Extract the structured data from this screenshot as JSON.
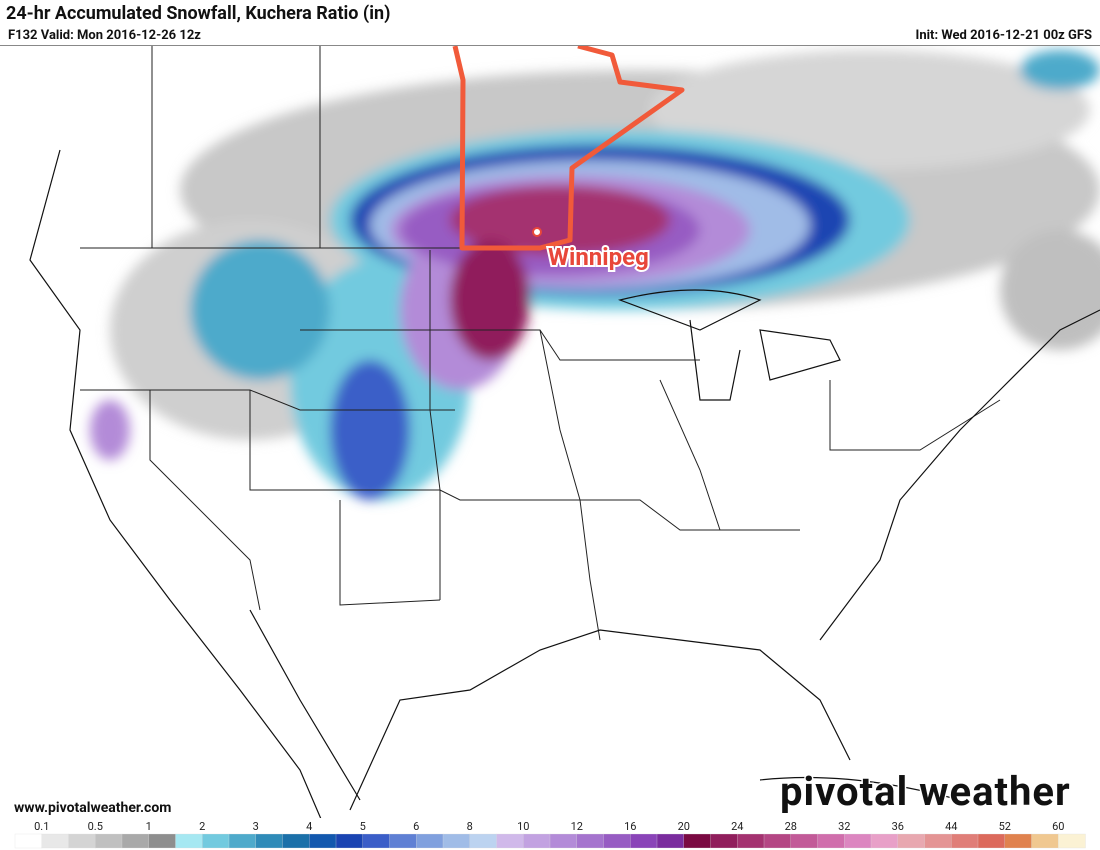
{
  "header": {
    "title": "24-hr Accumulated Snowfall, Kuchera Ratio (in)",
    "valid": "F132 Valid: Mon 2016-12-26 12z",
    "init": "Init: Wed 2016-12-21 00z GFS"
  },
  "map": {
    "city_label": "Winnipeg"
  },
  "footer": {
    "url": "www.pivotalweather.com",
    "watermark": "pivotal weather"
  },
  "legend": {
    "ticks": [
      0.1,
      0.5,
      1,
      2,
      3,
      4,
      5,
      6,
      8,
      10,
      12,
      16,
      20,
      24,
      28,
      32,
      36,
      44,
      52,
      60
    ],
    "colors": [
      "#ffffff",
      "#e8e8e8",
      "#d4d4d4",
      "#c0c0c0",
      "#a9a9a9",
      "#8e8e8e",
      "#a6e8f2",
      "#72cadf",
      "#4eaacb",
      "#2f8bb8",
      "#1b70a9",
      "#1258ae",
      "#1a44b2",
      "#3b5ec8",
      "#5f80d4",
      "#80a0de",
      "#a0bce7",
      "#bcd3f0",
      "#d0b9ea",
      "#c2a2e1",
      "#b38bd8",
      "#a574ce",
      "#975cc3",
      "#8a44b8",
      "#7a2c9e",
      "#7a0a42",
      "#901e5c",
      "#a43270",
      "#b44684",
      "#c25a98",
      "#d06eac",
      "#dc86c0",
      "#e8a0c8",
      "#e8a8b0",
      "#e49494",
      "#e07e78",
      "#dc6a5c",
      "#e0824e",
      "#f0c890",
      "#fbf2d4"
    ]
  }
}
